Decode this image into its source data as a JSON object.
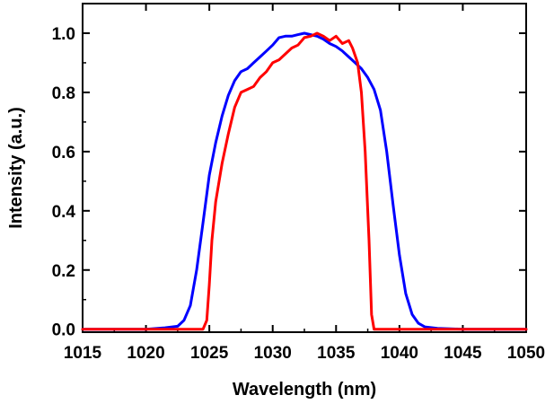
{
  "chart_data": {
    "type": "line",
    "title": "",
    "xlabel": "Wavelength (nm)",
    "ylabel": "Intensity (a.u.)",
    "xlim": [
      1015,
      1050
    ],
    "ylim": [
      -0.01,
      1.1
    ],
    "xticks": [
      1015,
      1020,
      1025,
      1030,
      1035,
      1040,
      1045,
      1050
    ],
    "xtick_labels": [
      "1015",
      "1020",
      "1025",
      "1030",
      "1035",
      "1040",
      "1045",
      "1050"
    ],
    "yticks": [
      0.0,
      0.2,
      0.4,
      0.6,
      0.8,
      1.0
    ],
    "ytick_labels": [
      "0.0",
      "0.2",
      "0.4",
      "0.6",
      "0.8",
      "1.0"
    ],
    "grid": false,
    "legend": "none",
    "series": [
      {
        "color": "#0000ff",
        "x": [
          1015,
          1020,
          1021.5,
          1022.5,
          1023,
          1023.5,
          1024,
          1024.5,
          1025,
          1025.5,
          1026,
          1026.5,
          1027,
          1027.5,
          1028,
          1028.5,
          1029,
          1029.5,
          1030,
          1030.5,
          1031,
          1031.5,
          1032,
          1032.5,
          1033,
          1033.5,
          1034,
          1034.5,
          1035,
          1035.5,
          1036,
          1036.5,
          1037,
          1037.5,
          1038,
          1038.5,
          1039,
          1039.5,
          1040,
          1040.5,
          1041,
          1041.5,
          1042,
          1043,
          1045,
          1050
        ],
        "y": [
          0.0,
          0.0,
          0.005,
          0.01,
          0.03,
          0.08,
          0.2,
          0.36,
          0.52,
          0.63,
          0.72,
          0.79,
          0.84,
          0.87,
          0.88,
          0.9,
          0.92,
          0.94,
          0.96,
          0.985,
          0.99,
          0.99,
          0.995,
          1.0,
          0.995,
          0.99,
          0.98,
          0.965,
          0.955,
          0.94,
          0.92,
          0.9,
          0.88,
          0.85,
          0.81,
          0.74,
          0.6,
          0.42,
          0.25,
          0.12,
          0.05,
          0.02,
          0.008,
          0.003,
          0.0,
          0.0
        ]
      },
      {
        "color": "#ff0000",
        "x": [
          1015,
          1024.5,
          1024.8,
          1025,
          1025.2,
          1025.5,
          1026,
          1026.5,
          1027,
          1027.5,
          1028,
          1028.5,
          1029,
          1029.5,
          1030,
          1030.5,
          1031,
          1031.5,
          1032,
          1032.5,
          1033,
          1033.5,
          1034,
          1034.5,
          1035,
          1035.5,
          1036,
          1036.3,
          1036.7,
          1037,
          1037.3,
          1037.6,
          1037.8,
          1038,
          1050
        ],
        "y": [
          0.0,
          0.0,
          0.03,
          0.15,
          0.3,
          0.43,
          0.56,
          0.66,
          0.75,
          0.8,
          0.81,
          0.82,
          0.85,
          0.87,
          0.9,
          0.91,
          0.93,
          0.95,
          0.96,
          0.985,
          0.99,
          1.0,
          0.99,
          0.975,
          0.99,
          0.965,
          0.975,
          0.95,
          0.9,
          0.8,
          0.6,
          0.3,
          0.05,
          0.0,
          0.0
        ]
      }
    ]
  }
}
